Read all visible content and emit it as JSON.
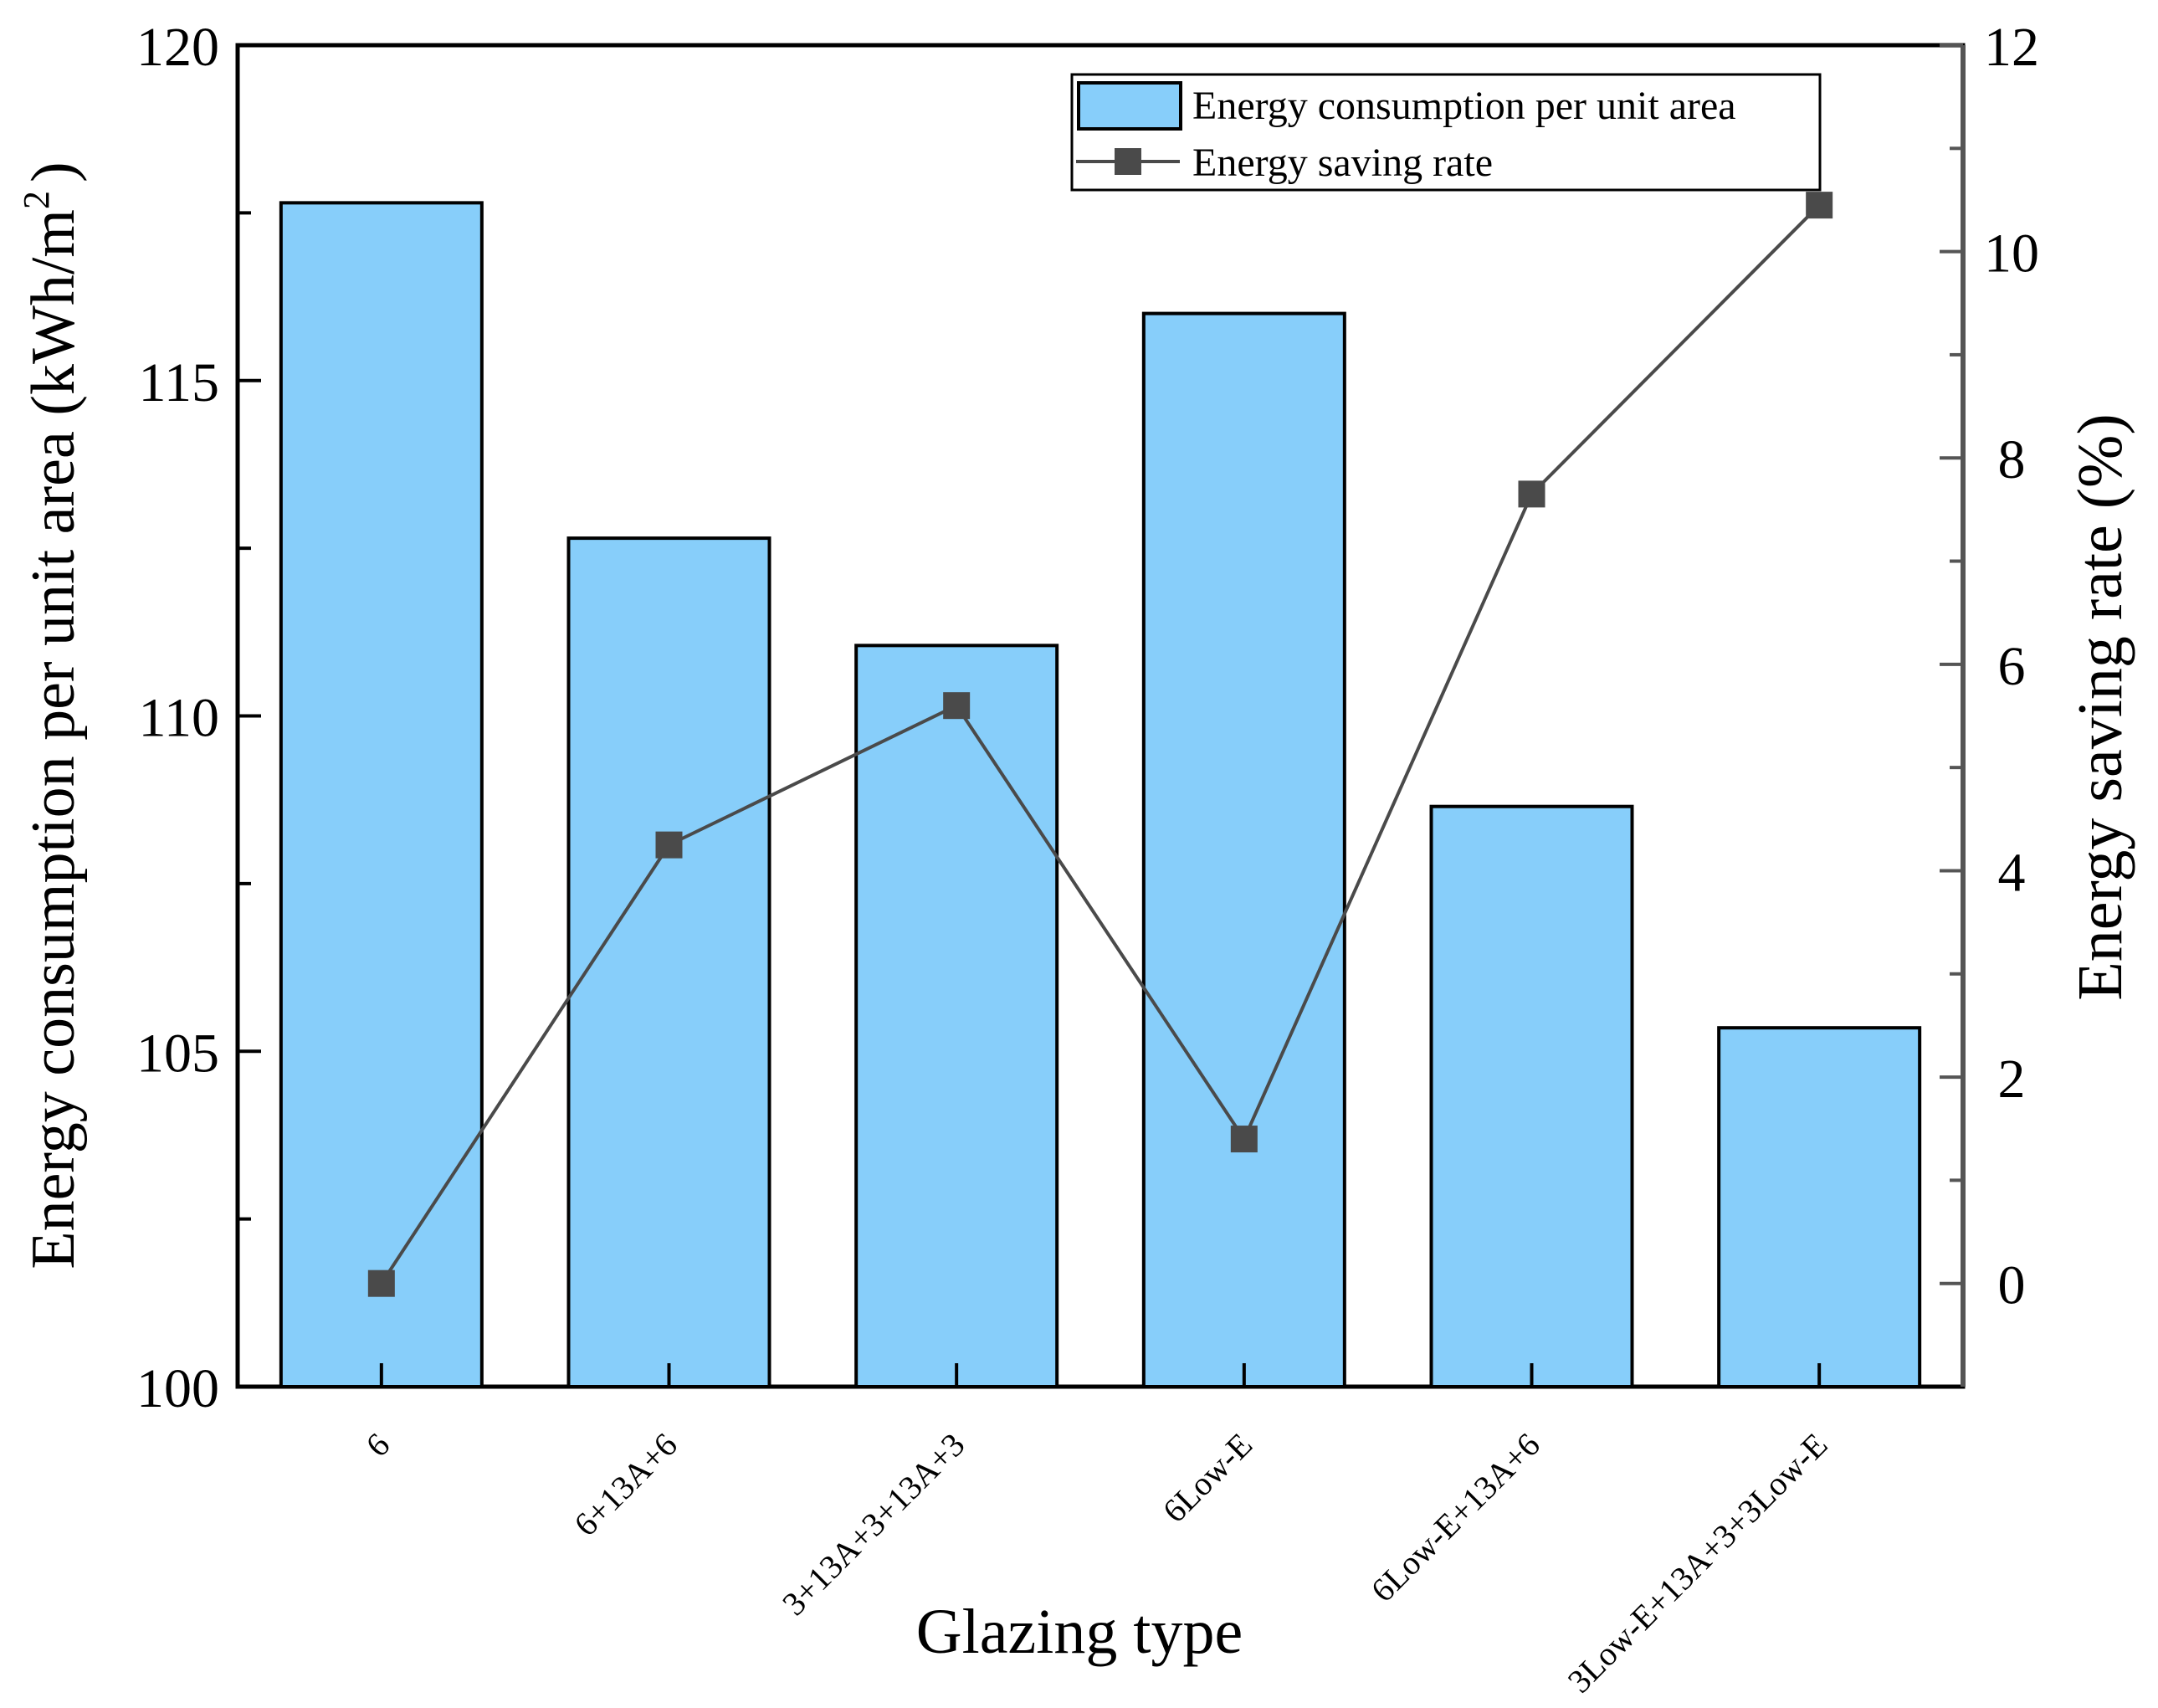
{
  "chart_data": {
    "type": "bar+line",
    "categories": [
      "6",
      "6+13A+6",
      "3+13A+3+13A+3",
      "6Low-E",
      "6Low-E+13A+6",
      "3Low-E+13A+3+3Low-E"
    ],
    "xlabel": "Glazing type",
    "ylabel_left": "Energy consumption per unit area (kWh/m",
    "ylabel_left_sup": "2",
    "ylabel_left_close": ")",
    "ylabel_right": "Energy saving rate (%)",
    "y_left": {
      "range": [
        100,
        120
      ],
      "ticks": [
        "100",
        "105",
        "110",
        "115",
        "120"
      ]
    },
    "y_right": {
      "range": [
        -1,
        12
      ],
      "ticks": [
        "0",
        "2",
        "4",
        "6",
        "8",
        "10",
        "12"
      ]
    },
    "series": [
      {
        "name": "Energy consumption per unit area",
        "type": "bar",
        "axis": "left",
        "color": "#87CEFA",
        "values": [
          117.65,
          112.65,
          111.05,
          116.0,
          108.65,
          105.35
        ]
      },
      {
        "name": "Energy saving rate",
        "type": "line",
        "axis": "right",
        "color": "#4a4a4a",
        "values": [
          0.0,
          4.25,
          5.6,
          1.4,
          7.65,
          10.45
        ]
      }
    ],
    "legend": {
      "position": "top-right",
      "entries": [
        "Energy consumption per unit area",
        "Energy saving rate"
      ]
    }
  }
}
